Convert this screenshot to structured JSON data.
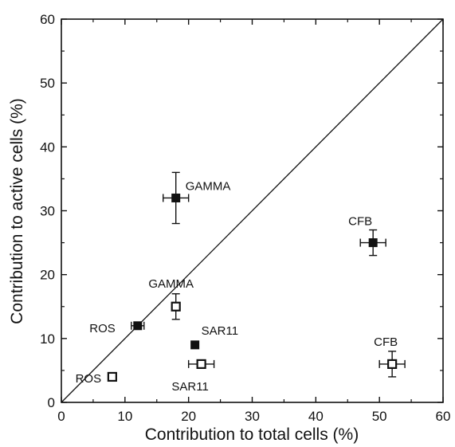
{
  "chart_data": {
    "type": "scatter",
    "title": "",
    "xlabel": "Contribution to total cells (%)",
    "ylabel": "Contribution to active cells (%)",
    "xlim": [
      0,
      60
    ],
    "ylim": [
      0,
      60
    ],
    "xticks": [
      "0",
      "10",
      "20",
      "30",
      "40",
      "50",
      "60"
    ],
    "yticks": [
      "0",
      "10",
      "20",
      "30",
      "40",
      "50",
      "60"
    ],
    "reference_line": {
      "x": [
        0,
        60
      ],
      "y": [
        0,
        60
      ]
    },
    "grid": false,
    "legend": "none",
    "series": [
      {
        "marker": "filled-square",
        "color": "#111111",
        "points": [
          {
            "label": "GAMMA",
            "x": 18,
            "y": 32,
            "xerr": 2,
            "yerr": 4
          },
          {
            "label": "CFB",
            "x": 49,
            "y": 25,
            "xerr": 2,
            "yerr": 2
          },
          {
            "label": "ROS",
            "x": 12,
            "y": 12,
            "xerr": 1,
            "yerr": 0
          },
          {
            "label": "SAR11",
            "x": 21,
            "y": 9,
            "xerr": 0,
            "yerr": 0
          }
        ]
      },
      {
        "marker": "open-square",
        "color": "#111111",
        "points": [
          {
            "label": "GAMMA",
            "x": 18,
            "y": 15,
            "xerr": 0,
            "yerr": 2
          },
          {
            "label": "SAR11",
            "x": 22,
            "y": 6,
            "xerr": 2,
            "yerr": 0
          },
          {
            "label": "CFB",
            "x": 52,
            "y": 6,
            "xerr": 2,
            "yerr": 2
          },
          {
            "label": "ROS",
            "x": 8,
            "y": 4,
            "xerr": 0,
            "yerr": 0
          }
        ]
      }
    ]
  }
}
